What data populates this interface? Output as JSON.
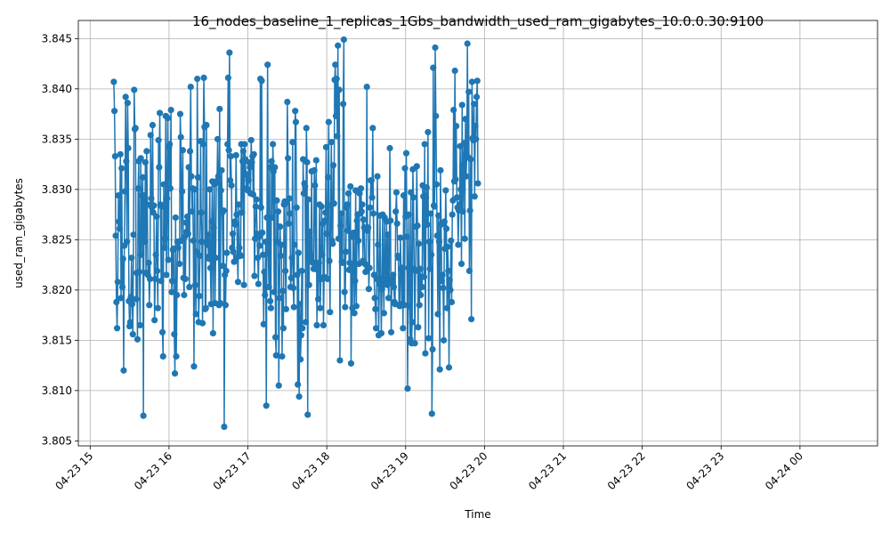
{
  "chart_data": {
    "type": "line",
    "title": "16_nodes_baseline_1_replicas_1Gbs_bandwidth_used_ram_gigabytes_10.0.0.30:9100",
    "xlabel": "Time",
    "ylabel": "used_ram_gigabytes",
    "grid": true,
    "marker": "circle",
    "line_color": "#1f77b4",
    "x_range": [
      "04-23 14:51",
      "04-24 00:59"
    ],
    "ylim": [
      3.8045,
      3.8468
    ],
    "x_ticks": [
      "04-23 15",
      "04-23 16",
      "04-23 17",
      "04-23 18",
      "04-23 19",
      "04-23 20",
      "04-23 21",
      "04-23 22",
      "04-23 23",
      "04-24 00"
    ],
    "y_ticks": [
      "3.805",
      "3.810",
      "3.815",
      "3.820",
      "3.825",
      "3.830",
      "3.835",
      "3.840",
      "3.845"
    ],
    "series": [
      {
        "x_start": "04-23 15:18",
        "step_minutes": 0.5,
        "y": [
          3.8407,
          3.8378,
          3.8333,
          3.8254,
          3.8188,
          3.8162,
          3.8208,
          3.8294,
          3.8268,
          3.8261,
          3.8335,
          3.8192,
          3.8321,
          3.8203,
          3.8231,
          3.812,
          3.8244,
          3.8298,
          3.8392,
          3.8328,
          3.8248,
          3.8386,
          3.8341,
          3.8189,
          3.8164,
          3.8168,
          3.8193,
          3.8232,
          3.8186,
          3.8156,
          3.8255,
          3.8399,
          3.836,
          3.8361,
          3.8191,
          3.8217,
          3.8151,
          3.8301,
          3.8328,
          3.8218,
          3.8165,
          3.8331,
          3.8235,
          3.8294,
          3.8312,
          3.8075,
          3.8294,
          3.8248,
          3.8327,
          3.8217,
          3.8338,
          3.8285,
          3.8215,
          3.8227,
          3.8185,
          3.8211,
          3.8354,
          3.8291,
          3.8282,
          3.8364,
          3.8277,
          3.8284,
          3.817,
          3.8211,
          3.8235,
          3.8273,
          3.8219,
          3.8182,
          3.8349,
          3.8322,
          3.8376,
          3.8285,
          3.8209,
          3.8283,
          3.8158,
          3.8134,
          3.8305,
          3.8242,
          3.8251,
          3.8373,
          3.8215,
          3.8291,
          3.8371,
          3.823,
          3.8342,
          3.8345,
          3.8301,
          3.8379,
          3.8198,
          3.8209,
          3.824,
          3.8241,
          3.8156,
          3.8117,
          3.8272,
          3.8134,
          3.8195,
          3.8248,
          3.8242,
          3.8248,
          3.8226,
          3.8375,
          3.8352,
          3.8249,
          3.8298,
          3.8339,
          3.8212,
          3.8195,
          3.8253,
          3.8211,
          3.8267,
          3.8258,
          3.8273,
          3.8256,
          3.8322,
          3.8203,
          3.8338,
          3.8402,
          3.8313,
          3.8278,
          3.8301,
          3.8249,
          3.8124,
          3.83,
          3.8205,
          3.8176,
          3.8238,
          3.841,
          3.8312,
          3.8168,
          3.8194,
          3.8234,
          3.8348,
          3.8277,
          3.8248,
          3.8167,
          3.8345,
          3.8411,
          3.8362,
          3.8181,
          3.8182,
          3.8364,
          3.8245,
          3.8255,
          3.8233,
          3.8231,
          3.83,
          3.8222,
          3.8186,
          3.8268,
          3.8308,
          3.8157,
          3.8262,
          3.8305,
          3.8187,
          3.8232,
          3.8308,
          3.8307,
          3.835,
          3.8313,
          3.8185,
          3.838,
          3.8187,
          3.8299,
          3.8319,
          3.8277,
          3.8224,
          3.8279,
          3.8064,
          3.8215,
          3.8185,
          3.8219,
          3.8237,
          3.8345,
          3.8411,
          3.8339,
          3.8436,
          3.8309,
          3.8333,
          3.8304,
          3.8242,
          3.8256,
          3.8238,
          3.8228,
          3.8268,
          3.8265,
          3.8334,
          3.8275,
          3.8233,
          3.8208,
          3.8285,
          3.8242,
          3.8235,
          3.8234,
          3.8345,
          3.8277,
          3.8328,
          3.8338,
          3.8205,
          3.8345,
          3.833,
          3.8315,
          3.8301,
          3.8315,
          3.8299,
          3.8309,
          3.8327,
          3.8322,
          3.8296,
          3.8349,
          3.8327,
          3.8333,
          3.8295,
          3.8335,
          3.8214,
          3.8251,
          3.8283,
          3.829,
          3.8256,
          3.8232,
          3.8206,
          3.8253,
          3.8244,
          3.841,
          3.8282,
          3.8408,
          3.8257,
          3.8235,
          3.8166,
          3.8218,
          3.8195,
          3.8248,
          3.8085,
          3.8272,
          3.8424,
          3.8237,
          3.8203,
          3.8322,
          3.8189,
          3.8182,
          3.8328,
          3.8272,
          3.8345,
          3.8318,
          3.8198,
          3.8322,
          3.8153,
          3.8135,
          3.8289,
          3.8248,
          3.8278,
          3.8105,
          3.8192,
          3.8263,
          3.8234,
          3.8245,
          3.8134,
          3.8199,
          3.8162,
          3.8285,
          3.8288,
          3.8219,
          3.8181,
          3.8287,
          3.8387,
          3.8331,
          3.8266,
          3.8291,
          3.8276,
          3.8203,
          3.8212,
          3.8232,
          3.8347,
          3.8202,
          3.8183,
          3.8245,
          3.8378,
          3.8367,
          3.8282,
          3.8215,
          3.8106,
          3.8237,
          3.8094,
          3.8186,
          3.8131,
          3.8155,
          3.8219,
          3.8162,
          3.833,
          3.8296,
          3.8306,
          3.8303,
          3.8168,
          3.8361,
          3.8327,
          3.8076,
          3.829,
          3.8205,
          3.8258,
          3.8231,
          3.8235,
          3.8318,
          3.8228,
          3.8227,
          3.8221,
          3.8319,
          3.8304,
          3.8223,
          3.8329,
          3.8165,
          3.822,
          3.8191,
          3.8227,
          3.8285,
          3.8182,
          3.8211,
          3.8283,
          3.8235,
          3.8266,
          3.8165,
          3.8213,
          3.8269,
          3.8277,
          3.8342,
          3.8256,
          3.8211,
          3.8312,
          3.8367,
          3.8229,
          3.8178,
          3.8284,
          3.8347,
          3.8249,
          3.8246,
          3.8324,
          3.8286,
          3.8409,
          3.8424,
          3.8373,
          3.841,
          3.8353,
          3.8443,
          3.8251,
          3.8399,
          3.813,
          3.8264,
          3.8276,
          3.8228,
          3.8227,
          3.8385,
          3.8449,
          3.8198,
          3.8183,
          3.8238,
          3.8282,
          3.8285,
          3.8259,
          3.8296,
          3.822,
          3.8227,
          3.8303,
          3.8127,
          3.8222,
          3.8182,
          3.8253,
          3.8257,
          3.8177,
          3.8209,
          3.8299,
          3.8184,
          3.8269,
          3.8275,
          3.8249,
          3.8226,
          3.8296,
          3.8276,
          3.8301,
          3.8278,
          3.8285,
          3.8229,
          3.827,
          3.8262,
          3.8226,
          3.8218,
          3.8225,
          3.8402,
          3.8259,
          3.8262,
          3.8201,
          3.8222,
          3.8282,
          3.8309,
          3.8309,
          3.8292,
          3.8361,
          3.8276,
          3.8215,
          3.8192,
          3.8181,
          3.8162,
          3.8211,
          3.8313,
          3.8245,
          3.8155,
          3.8206,
          3.8274,
          3.8211,
          3.8157,
          3.8201,
          3.8275,
          3.8211,
          3.8177,
          3.8272,
          3.8225,
          3.8206,
          3.8268,
          3.8205,
          3.8255,
          3.8192,
          3.8207,
          3.8341,
          3.8269,
          3.8158,
          3.8211,
          3.8207,
          3.8215,
          3.8203,
          3.8188,
          3.8186,
          3.8278,
          3.8297,
          3.8266,
          3.8234,
          3.8232,
          3.8185,
          3.8184,
          3.8252,
          3.8221,
          3.8186,
          3.8222,
          3.8162,
          3.8294,
          3.8185,
          3.8321,
          3.8273,
          3.8336,
          3.8253,
          3.8102,
          3.8222,
          3.8275,
          3.8184,
          3.8151,
          3.8297,
          3.8147,
          3.8168,
          3.832,
          3.8292,
          3.8221,
          3.8147,
          3.8219,
          3.8263,
          3.8323,
          3.8264,
          3.8163,
          3.8246,
          3.8185,
          3.8221,
          3.8195,
          3.8213,
          3.8203,
          3.8304,
          3.8293,
          3.8213,
          3.8345,
          3.8137,
          3.8292,
          3.8302,
          3.8265,
          3.8357,
          3.8152,
          3.8248,
          3.8221,
          3.8276,
          3.8235,
          3.8077,
          3.8141,
          3.8421,
          3.8284,
          3.8283,
          3.8441,
          3.8373,
          3.8305,
          3.8254,
          3.8176,
          3.8274,
          3.8248,
          3.8121,
          3.8319,
          3.8265,
          3.8209,
          3.8215,
          3.8202,
          3.815,
          3.8268,
          3.8241,
          3.8299,
          3.8261,
          3.8182,
          3.8243,
          3.8219,
          3.8123,
          3.821,
          3.82,
          3.8249,
          3.8188,
          3.8275,
          3.8289,
          3.8379,
          3.8308,
          3.8418,
          3.831,
          3.8363,
          3.8292,
          3.8282,
          3.8245,
          3.8279,
          3.8285,
          3.8343,
          3.83,
          3.8226,
          3.8384,
          3.8278,
          3.8324,
          3.8346,
          3.8251,
          3.837,
          3.8313,
          3.8333,
          3.8445,
          3.8332,
          3.8397,
          3.8219,
          3.8279,
          3.833,
          3.8171,
          3.8407,
          3.8351,
          3.8349,
          3.8385,
          3.8293,
          3.8363,
          3.835,
          3.8392,
          3.8408,
          3.8306
        ]
      }
    ]
  }
}
